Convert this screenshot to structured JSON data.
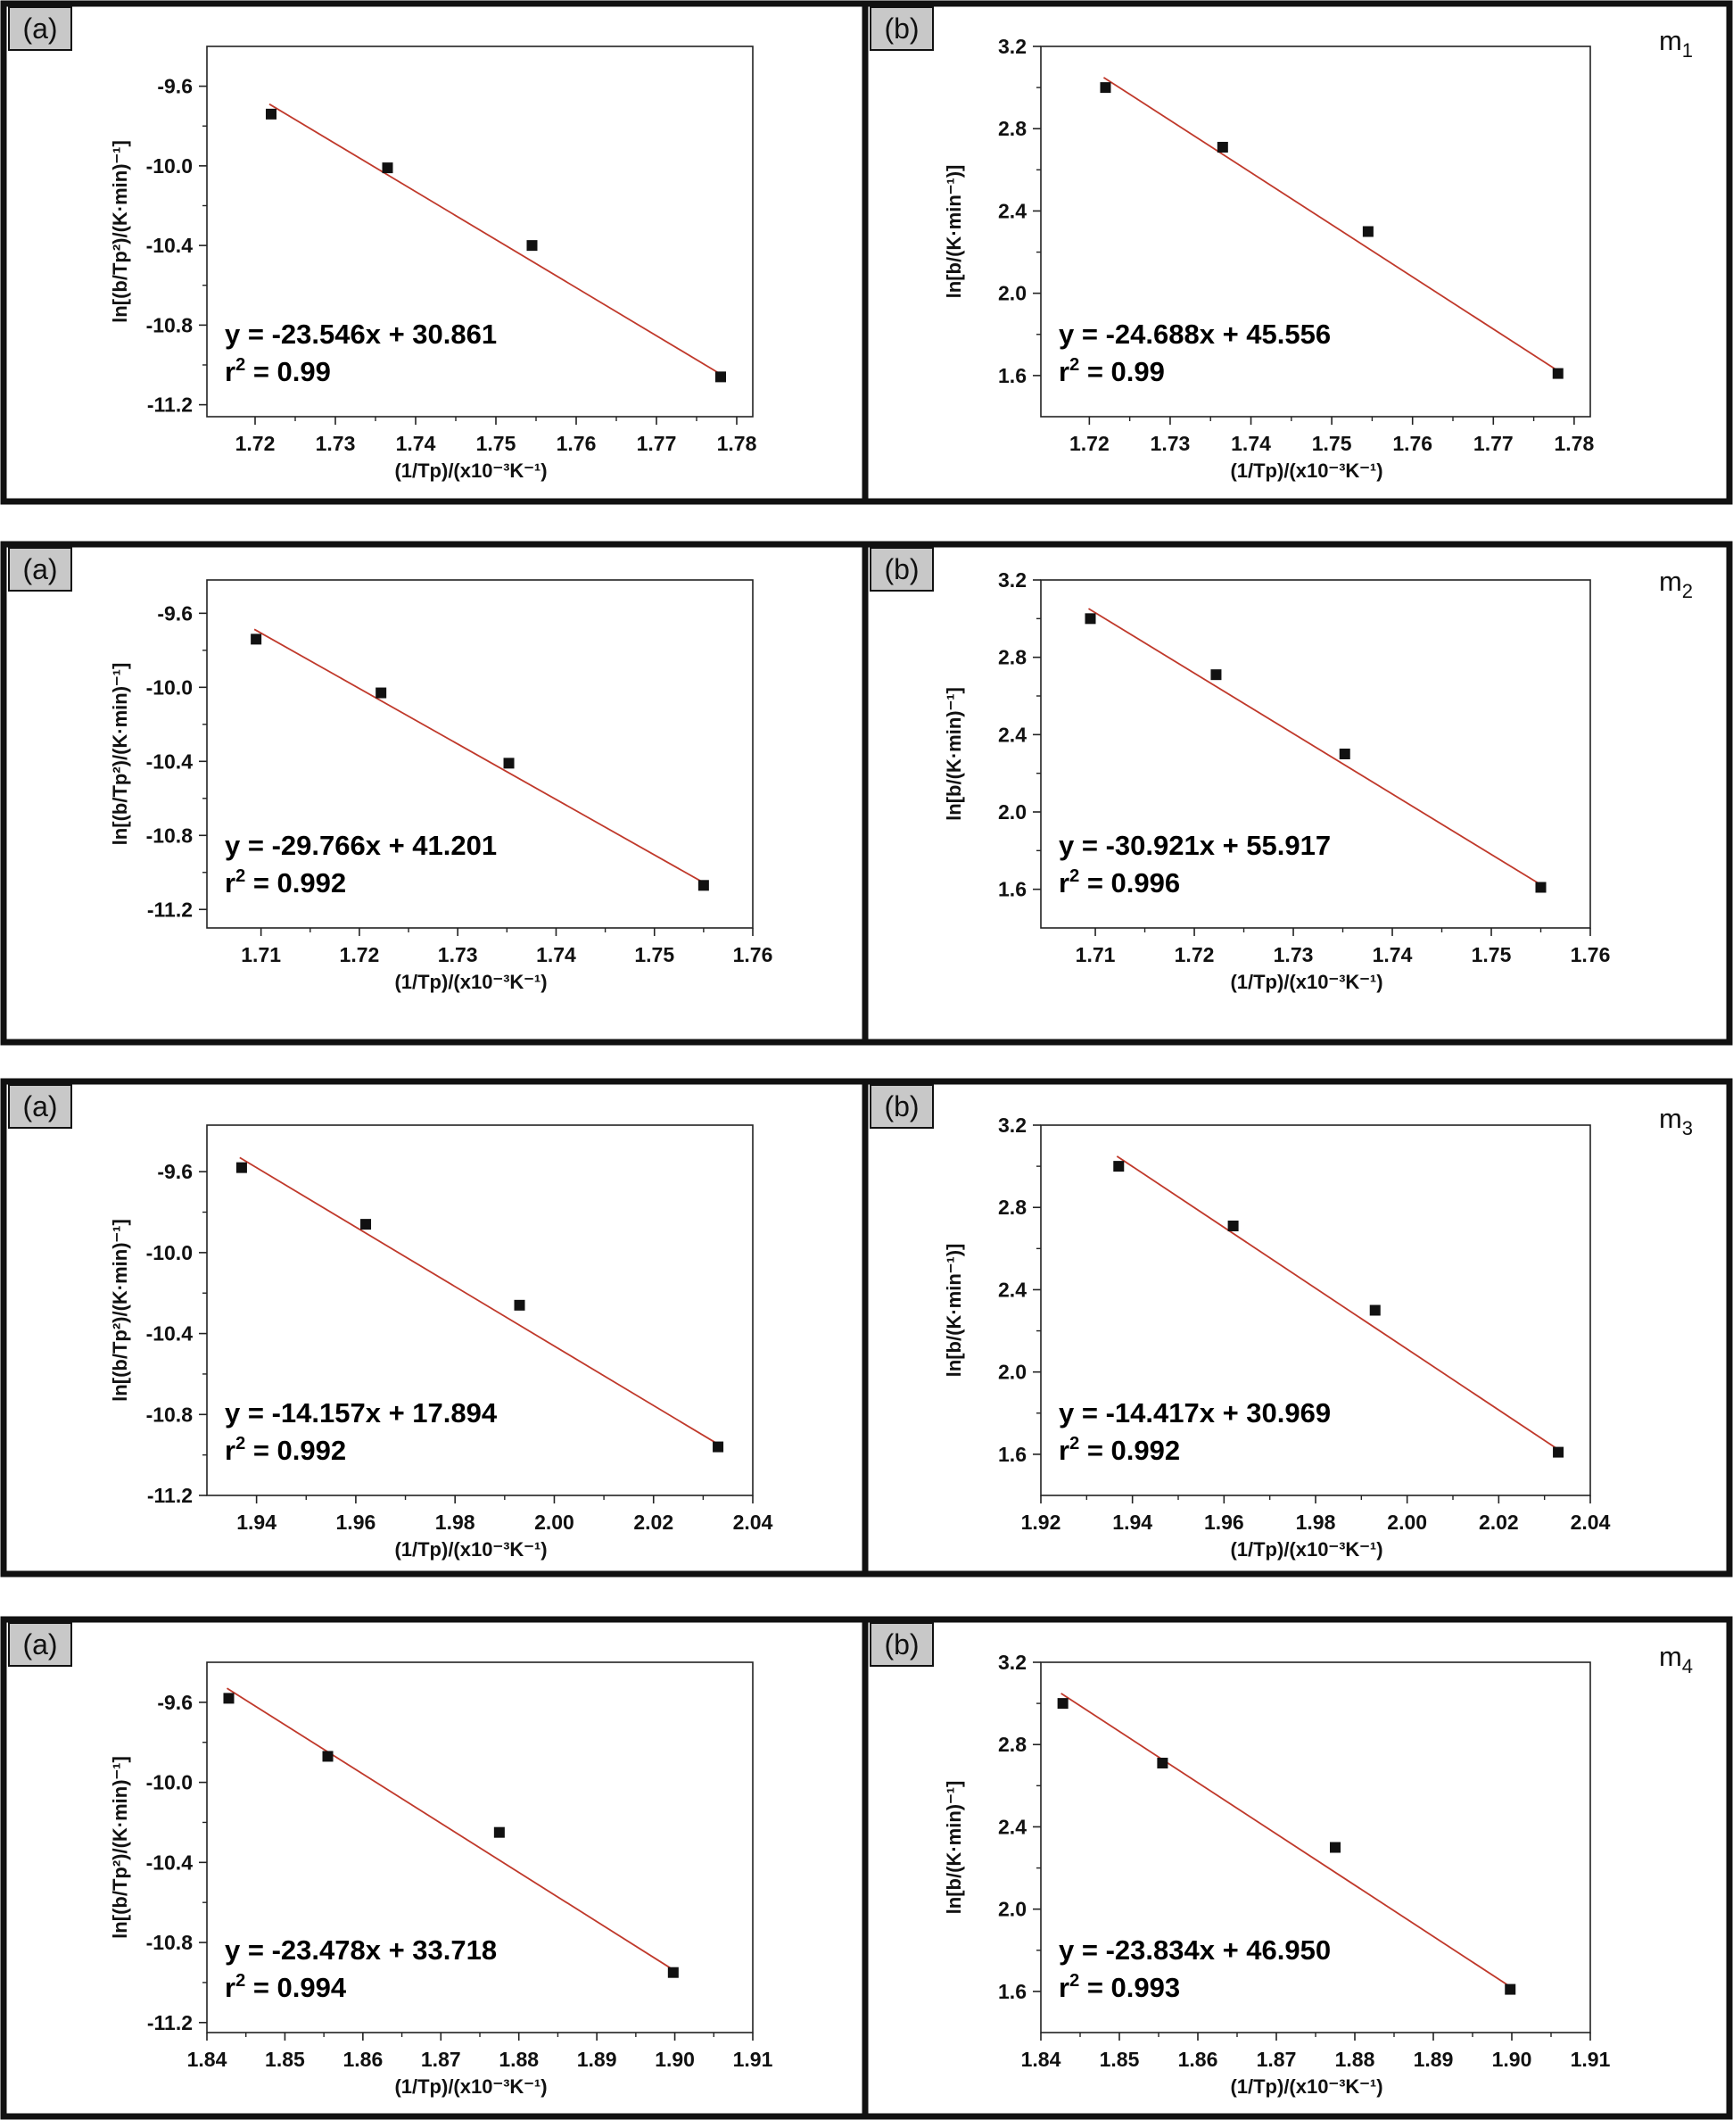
{
  "colors": {
    "fit_line": "#c0392b",
    "points": "#111111",
    "tag_fill": "#c8c8c8",
    "frame": "#111111"
  },
  "chart_data": [
    {
      "type": "scatter",
      "row": 0,
      "col": 0,
      "tag": "(a)",
      "sample": "",
      "xlabel": "(1/Tp)/(x10⁻³K⁻¹)",
      "ylabel": "ln[(b/Tp²)/(K·min)⁻¹]",
      "xlim": [
        1.714,
        1.782
      ],
      "ylim": [
        -11.26,
        -9.4
      ],
      "xticks": [
        "1.72",
        "1.73",
        "1.74",
        "1.75",
        "1.76",
        "1.77",
        "1.78"
      ],
      "yticks": [
        "-9.6",
        "-10.0",
        "-10.4",
        "-10.8",
        "-11.2"
      ],
      "x": [
        1.722,
        1.7365,
        1.7545,
        1.778
      ],
      "y": [
        -9.74,
        -10.01,
        -10.4,
        -11.06
      ],
      "fit": {
        "slope": -23.546,
        "intercept": 30.861
      },
      "equation": "y = -23.546x + 30.861",
      "r2_value": "0.99"
    },
    {
      "type": "scatter",
      "row": 0,
      "col": 1,
      "tag": "(b)",
      "sample": "m1",
      "xlabel": "(1/Tp)/(x10⁻³K⁻¹)",
      "ylabel": "ln[b/(K·min⁻¹)]",
      "xlim": [
        1.714,
        1.782
      ],
      "ylim": [
        1.4,
        3.2
      ],
      "xticks": [
        "1.72",
        "1.73",
        "1.74",
        "1.75",
        "1.76",
        "1.77",
        "1.78"
      ],
      "yticks": [
        "3.2",
        "2.8",
        "2.4",
        "2.0",
        "1.6"
      ],
      "x": [
        1.722,
        1.7365,
        1.7545,
        1.778
      ],
      "y": [
        3.0,
        2.71,
        2.3,
        1.61
      ],
      "fit": {
        "slope": -24.688,
        "intercept": 45.556
      },
      "equation": "y = -24.688x + 45.556",
      "r2_value": "0.99"
    },
    {
      "type": "scatter",
      "row": 1,
      "col": 0,
      "tag": "(a)",
      "sample": "",
      "xlabel": "(1/Tp)/(x10⁻³K⁻¹)",
      "ylabel": "ln[(b/Tp²)/(K·min)⁻¹]",
      "xlim": [
        1.7045,
        1.76
      ],
      "ylim": [
        -11.3,
        -9.42
      ],
      "xticks": [
        "1.71",
        "1.72",
        "1.73",
        "1.74",
        "1.75",
        "1.76"
      ],
      "yticks": [
        "-9.6",
        "-10.0",
        "-10.4",
        "-10.8",
        "-11.2"
      ],
      "x": [
        1.7095,
        1.7222,
        1.7352,
        1.755
      ],
      "y": [
        -9.74,
        -10.03,
        -10.41,
        -11.07
      ],
      "fit": {
        "slope": -29.766,
        "intercept": 41.201
      },
      "equation": "y = -29.766x + 41.201",
      "r2_value": "0.992"
    },
    {
      "type": "scatter",
      "row": 1,
      "col": 1,
      "tag": "(b)",
      "sample": "m2",
      "xlabel": "(1/Tp)/(x10⁻³K⁻¹)",
      "ylabel": "ln[b/(K·min)⁻¹]",
      "xlim": [
        1.7045,
        1.76
      ],
      "ylim": [
        1.4,
        3.2
      ],
      "xticks": [
        "1.71",
        "1.72",
        "1.73",
        "1.74",
        "1.75",
        "1.76"
      ],
      "yticks": [
        "3.2",
        "2.8",
        "2.4",
        "2.0",
        "1.6"
      ],
      "x": [
        1.7095,
        1.7222,
        1.7352,
        1.755
      ],
      "y": [
        3.0,
        2.71,
        2.3,
        1.61
      ],
      "fit": {
        "slope": -30.921,
        "intercept": 55.917
      },
      "equation": "y = -30.921x + 55.917",
      "r2_value": "0.996"
    },
    {
      "type": "scatter",
      "row": 2,
      "col": 0,
      "tag": "(a)",
      "sample": "",
      "xlabel": "(1/Tp)/(x10⁻³K⁻¹)",
      "ylabel": "ln[(b/Tp²)/(K·min)⁻¹]",
      "xlim": [
        1.93,
        2.04
      ],
      "ylim": [
        -11.2,
        -9.37
      ],
      "xticks": [
        "1.94",
        "1.96",
        "1.98",
        "2.00",
        "2.02",
        "2.04"
      ],
      "yticks": [
        "-9.6",
        "-10.0",
        "-10.4",
        "-10.8",
        "-11.2"
      ],
      "x": [
        1.937,
        1.962,
        1.993,
        2.033
      ],
      "y": [
        -9.58,
        -9.86,
        -10.26,
        -10.96
      ],
      "fit": {
        "slope": -14.157,
        "intercept": 17.894
      },
      "equation": "y = -14.157x + 17.894",
      "r2_value": "0.992"
    },
    {
      "type": "scatter",
      "row": 2,
      "col": 1,
      "tag": "(b)",
      "sample": "m3",
      "xlabel": "(1/Tp)/(x10⁻³K⁻¹)",
      "ylabel": "ln[b/(K·min⁻¹)]",
      "xlim": [
        1.92,
        2.04
      ],
      "ylim": [
        1.4,
        3.2
      ],
      "xticks": [
        "1.92",
        "1.94",
        "1.96",
        "1.98",
        "2.00",
        "2.02",
        "2.04"
      ],
      "yticks": [
        "3.2",
        "2.8",
        "2.4",
        "2.0",
        "1.6"
      ],
      "x": [
        1.937,
        1.962,
        1.993,
        2.033
      ],
      "y": [
        3.0,
        2.71,
        2.3,
        1.61
      ],
      "fit": {
        "slope": -14.417,
        "intercept": 30.969
      },
      "equation": "y = -14.417x + 30.969",
      "r2_value": "0.992"
    },
    {
      "type": "scatter",
      "row": 3,
      "col": 0,
      "tag": "(a)",
      "sample": "",
      "xlabel": "(1/Tp)/(x10⁻³K⁻¹)",
      "ylabel": "ln[(b/Tp²)/(K·min)⁻¹]",
      "xlim": [
        1.84,
        1.91
      ],
      "ylim": [
        -11.25,
        -9.4
      ],
      "xticks": [
        "1.84",
        "1.85",
        "1.86",
        "1.87",
        "1.88",
        "1.89",
        "1.90",
        "1.91"
      ],
      "yticks": [
        "-9.6",
        "-10.0",
        "-10.4",
        "-10.8",
        "-11.2"
      ],
      "x": [
        1.8428,
        1.8555,
        1.8775,
        1.8998
      ],
      "y": [
        -9.58,
        -9.87,
        -10.25,
        -10.95
      ],
      "fit": {
        "slope": -23.478,
        "intercept": 33.718
      },
      "equation": "y = -23.478x + 33.718",
      "r2_value": "0.994"
    },
    {
      "type": "scatter",
      "row": 3,
      "col": 1,
      "tag": "(b)",
      "sample": "m4",
      "xlabel": "(1/Tp)/(x10⁻³K⁻¹)",
      "ylabel": "ln[b/(K·min)⁻¹]",
      "xlim": [
        1.84,
        1.91
      ],
      "ylim": [
        1.4,
        3.2
      ],
      "xticks": [
        "1.84",
        "1.85",
        "1.86",
        "1.87",
        "1.88",
        "1.89",
        "1.90",
        "1.91"
      ],
      "yticks": [
        "3.2",
        "2.8",
        "2.4",
        "2.0",
        "1.6"
      ],
      "x": [
        1.8428,
        1.8555,
        1.8775,
        1.8998
      ],
      "y": [
        3.0,
        2.71,
        2.3,
        1.61
      ],
      "fit": {
        "slope": -23.834,
        "intercept": 46.95
      },
      "equation": "y = -23.834x + 46.950",
      "r2_value": "0.993"
    }
  ]
}
